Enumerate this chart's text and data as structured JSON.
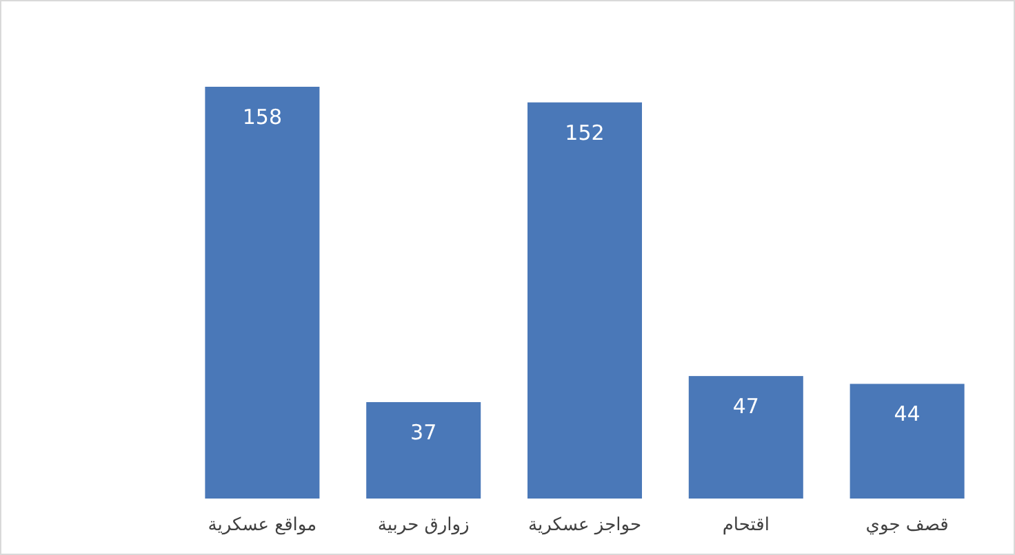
{
  "chart_data": {
    "type": "bar",
    "categories": [
      "مواقع عسكرية",
      "زوارق حربية",
      "حواجز عسكرية",
      "اقتحام",
      "قصف جوي"
    ],
    "values": [
      158,
      37,
      152,
      47,
      44
    ],
    "color": "#4a78b8",
    "data_labels": true
  }
}
